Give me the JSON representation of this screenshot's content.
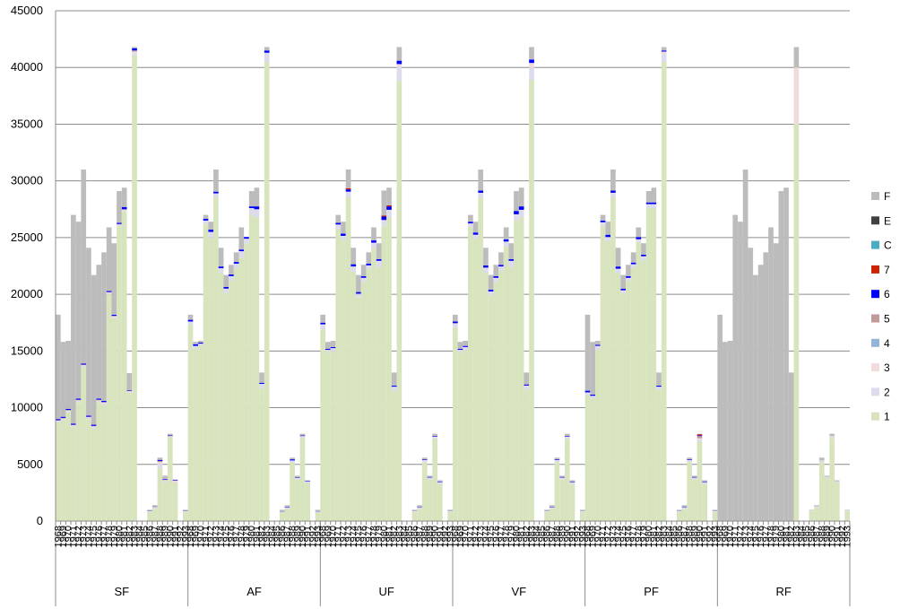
{
  "chart_data": {
    "type": "bar",
    "stacked": true,
    "ylim": [
      0,
      45000
    ],
    "yticks": [
      0,
      5000,
      10000,
      15000,
      20000,
      25000,
      30000,
      35000,
      40000,
      45000
    ],
    "gridlines": true,
    "legend_position": "right",
    "year_labels": [
      "1968",
      "1969",
      "1970",
      "1971",
      "1972",
      "1973",
      "1974",
      "1975",
      "1976",
      "1977",
      "1978",
      "1979",
      "1980",
      "1981",
      "1982",
      "1983",
      "1984",
      "1985",
      "1986",
      "1987",
      "1988",
      "1989",
      "1990",
      "1991",
      "1992",
      "1993"
    ],
    "groups": [
      "SF",
      "AF",
      "UF",
      "VF",
      "PF",
      "RF"
    ],
    "series_names": [
      "1",
      "2",
      "3",
      "4",
      "5",
      "6",
      "7",
      "C",
      "E",
      "F"
    ],
    "series_colors": [
      "#d7e4bd",
      "#dcdcec",
      "#f2dcdb",
      "#95b3d7",
      "#c39a9a",
      "#0000ff",
      "#cc2200",
      "#4bacc6",
      "#404040",
      "#bcbcbc"
    ],
    "totals": [
      18200,
      15800,
      15900,
      27000,
      26400,
      31000,
      24100,
      21700,
      22600,
      23700,
      25900,
      24500,
      29100,
      29400,
      13100,
      41800,
      0,
      0,
      1000,
      1400,
      5600,
      4000,
      7700,
      3600,
      0,
      1000
    ],
    "series": [
      {
        "group": "SF",
        "values": {
          "1": [
            8700,
            8900,
            9600,
            8300,
            10500,
            13600,
            9000,
            8200,
            10500,
            10300,
            20000,
            17900,
            26000,
            27300,
            11300,
            41100,
            0,
            0,
            800,
            1100,
            4700,
            3400,
            7400,
            3400,
            0,
            800
          ],
          "2": [
            100,
            100,
            100,
            100,
            100,
            100,
            100,
            100,
            100,
            100,
            100,
            100,
            100,
            100,
            100,
            200,
            0,
            0,
            50,
            100,
            300,
            150,
            50,
            100,
            0,
            50
          ],
          "3": [
            50,
            50,
            50,
            50,
            50,
            50,
            50,
            50,
            50,
            50,
            50,
            50,
            50,
            50,
            50,
            100,
            0,
            0,
            20,
            30,
            200,
            60,
            30,
            50,
            0,
            20
          ],
          "5": [
            50,
            50,
            50,
            50,
            50,
            50,
            50,
            50,
            50,
            50,
            50,
            50,
            50,
            50,
            50,
            100,
            0,
            0,
            20,
            30,
            100,
            60,
            30,
            50,
            0,
            20
          ],
          "6": [
            100,
            100,
            100,
            100,
            100,
            100,
            100,
            100,
            100,
            100,
            100,
            100,
            100,
            200,
            50,
            200,
            0,
            0,
            20,
            30,
            100,
            60,
            50,
            50,
            0,
            20
          ],
          "F": [
            9200,
            6600,
            6000,
            18400,
            15600,
            17100,
            14800,
            13200,
            11800,
            13100,
            5600,
            6300,
            2800,
            1700,
            1500,
            100,
            0,
            0,
            90,
            110,
            200,
            270,
            140,
            0,
            0,
            90
          ]
        }
      },
      {
        "group": "AF",
        "values": {
          "1": [
            17300,
            15200,
            15500,
            26200,
            25000,
            28600,
            21900,
            20100,
            21200,
            22300,
            23200,
            24500,
            27000,
            26800,
            11700,
            40500,
            0,
            0,
            800,
            1100,
            5200,
            3700,
            7400,
            3400,
            0,
            800
          ],
          "2": [
            300,
            250,
            150,
            300,
            500,
            300,
            400,
            400,
            400,
            400,
            600,
            400,
            600,
            700,
            400,
            800,
            0,
            0,
            50,
            100,
            150,
            100,
            100,
            100,
            0,
            50
          ],
          "6": [
            150,
            150,
            100,
            150,
            200,
            150,
            150,
            150,
            150,
            150,
            150,
            150,
            150,
            250,
            100,
            200,
            0,
            0,
            20,
            50,
            100,
            50,
            50,
            50,
            0,
            20
          ],
          "F": [
            450,
            200,
            150,
            350,
            700,
            1950,
            1650,
            1050,
            850,
            850,
            1950,
            -550,
            1350,
            1650,
            900,
            300,
            0,
            0,
            130,
            150,
            150,
            150,
            150,
            50,
            0,
            130
          ]
        }
      },
      {
        "group": "UF",
        "values": {
          "1": [
            16900,
            14900,
            15000,
            25800,
            24800,
            28600,
            22000,
            19700,
            21100,
            22200,
            24100,
            22400,
            26000,
            26800,
            11500,
            38800,
            0,
            0,
            800,
            1100,
            5200,
            3700,
            7300,
            3300,
            0,
            800
          ],
          "2": [
            400,
            150,
            200,
            300,
            300,
            400,
            400,
            300,
            300,
            300,
            400,
            500,
            500,
            600,
            300,
            1300,
            0,
            0,
            50,
            100,
            150,
            100,
            100,
            100,
            0,
            50
          ],
          "3": [
            50,
            50,
            50,
            50,
            50,
            50,
            50,
            50,
            50,
            50,
            50,
            50,
            50,
            50,
            50,
            200,
            0,
            0,
            20,
            30,
            50,
            40,
            40,
            40,
            0,
            20
          ],
          "6": [
            150,
            100,
            100,
            150,
            200,
            200,
            200,
            150,
            150,
            150,
            200,
            150,
            300,
            300,
            100,
            300,
            0,
            0,
            20,
            50,
            60,
            60,
            60,
            60,
            0,
            20
          ],
          "7": [
            0,
            0,
            0,
            0,
            0,
            100,
            0,
            0,
            0,
            0,
            0,
            0,
            100,
            100,
            0,
            0,
            0,
            0,
            0,
            0,
            0,
            0,
            0,
            0,
            0,
            0
          ],
          "F": [
            700,
            600,
            550,
            700,
            1050,
            1650,
            1450,
            1500,
            1000,
            1000,
            1150,
            1400,
            2200,
            1550,
            1150,
            1200,
            0,
            0,
            110,
            120,
            140,
            100,
            200,
            100,
            0,
            110
          ]
        }
      },
      {
        "group": "VF",
        "values": {
          "1": [
            17100,
            14900,
            15100,
            25900,
            24900,
            28500,
            21900,
            19900,
            21100,
            22100,
            24200,
            22400,
            26500,
            26800,
            11600,
            38900,
            0,
            0,
            800,
            1100,
            5200,
            3700,
            7300,
            3300,
            0,
            800
          ],
          "2": [
            300,
            150,
            200,
            300,
            300,
            400,
            400,
            300,
            300,
            300,
            400,
            500,
            500,
            600,
            300,
            1100,
            0,
            0,
            50,
            100,
            150,
            100,
            100,
            100,
            0,
            50
          ],
          "3": [
            50,
            50,
            50,
            50,
            50,
            50,
            50,
            50,
            50,
            50,
            50,
            50,
            50,
            50,
            50,
            400,
            0,
            0,
            20,
            30,
            50,
            40,
            40,
            40,
            0,
            20
          ],
          "6": [
            150,
            100,
            100,
            150,
            200,
            200,
            200,
            150,
            150,
            150,
            200,
            150,
            300,
            300,
            100,
            300,
            0,
            0,
            20,
            50,
            60,
            60,
            60,
            60,
            0,
            20
          ],
          "F": [
            600,
            600,
            450,
            600,
            950,
            1850,
            1550,
            1300,
            1000,
            1100,
            1050,
            1400,
            1750,
            1650,
            1050,
            1100,
            0,
            0,
            110,
            120,
            140,
            100,
            200,
            100,
            0,
            110
          ]
        }
      },
      {
        "group": "PF",
        "values": {
          "1": [
            11100,
            10800,
            15100,
            26000,
            24700,
            28600,
            21900,
            20100,
            21200,
            22400,
            24600,
            23000,
            27600,
            27600,
            11600,
            40500,
            0,
            0,
            800,
            1100,
            5200,
            3700,
            7000,
            3300,
            0,
            800
          ],
          "2": [
            200,
            200,
            300,
            300,
            300,
            300,
            300,
            200,
            200,
            200,
            200,
            300,
            300,
            300,
            200,
            700,
            0,
            0,
            50,
            100,
            150,
            100,
            200,
            100,
            0,
            50
          ],
          "3": [
            50,
            50,
            50,
            50,
            50,
            50,
            50,
            50,
            50,
            50,
            50,
            50,
            50,
            50,
            50,
            200,
            0,
            0,
            20,
            30,
            50,
            40,
            100,
            40,
            0,
            20
          ],
          "5": [
            0,
            0,
            0,
            0,
            0,
            0,
            0,
            0,
            0,
            0,
            0,
            0,
            0,
            0,
            0,
            0,
            0,
            0,
            0,
            0,
            0,
            0,
            200,
            0,
            0,
            0
          ],
          "6": [
            150,
            100,
            100,
            150,
            200,
            200,
            200,
            150,
            150,
            150,
            200,
            150,
            150,
            150,
            100,
            100,
            0,
            0,
            20,
            50,
            60,
            60,
            60,
            60,
            0,
            20
          ],
          "7": [
            0,
            0,
            0,
            0,
            0,
            0,
            0,
            0,
            0,
            0,
            0,
            0,
            0,
            0,
            0,
            0,
            0,
            0,
            0,
            0,
            0,
            0,
            100,
            0,
            0,
            0
          ],
          "F": [
            6700,
            4650,
            350,
            500,
            1150,
            1850,
            1650,
            1200,
            1000,
            900,
            850,
            1000,
            1000,
            1300,
            1150,
            300,
            0,
            0,
            110,
            120,
            140,
            100,
            40,
            100,
            0,
            110
          ]
        }
      },
      {
        "group": "RF",
        "values": {
          "1": [
            0,
            0,
            0,
            0,
            0,
            0,
            0,
            0,
            0,
            0,
            0,
            0,
            0,
            0,
            0,
            35000,
            0,
            0,
            900,
            1200,
            5200,
            3800,
            7300,
            3400,
            0,
            900
          ],
          "2": [
            0,
            0,
            0,
            0,
            0,
            0,
            0,
            0,
            0,
            0,
            0,
            0,
            0,
            0,
            0,
            0,
            0,
            0,
            50,
            100,
            150,
            100,
            200,
            100,
            0,
            50
          ],
          "3": [
            0,
            0,
            0,
            0,
            0,
            0,
            0,
            0,
            0,
            0,
            0,
            0,
            0,
            0,
            0,
            5000,
            0,
            0,
            0,
            0,
            0,
            0,
            0,
            0,
            0,
            0
          ],
          "F": [
            18200,
            15800,
            15900,
            27000,
            26400,
            31000,
            24100,
            21700,
            22600,
            23700,
            25900,
            24500,
            29100,
            29400,
            13100,
            1800,
            0,
            0,
            50,
            100,
            250,
            100,
            200,
            100,
            0,
            50
          ]
        }
      }
    ]
  }
}
